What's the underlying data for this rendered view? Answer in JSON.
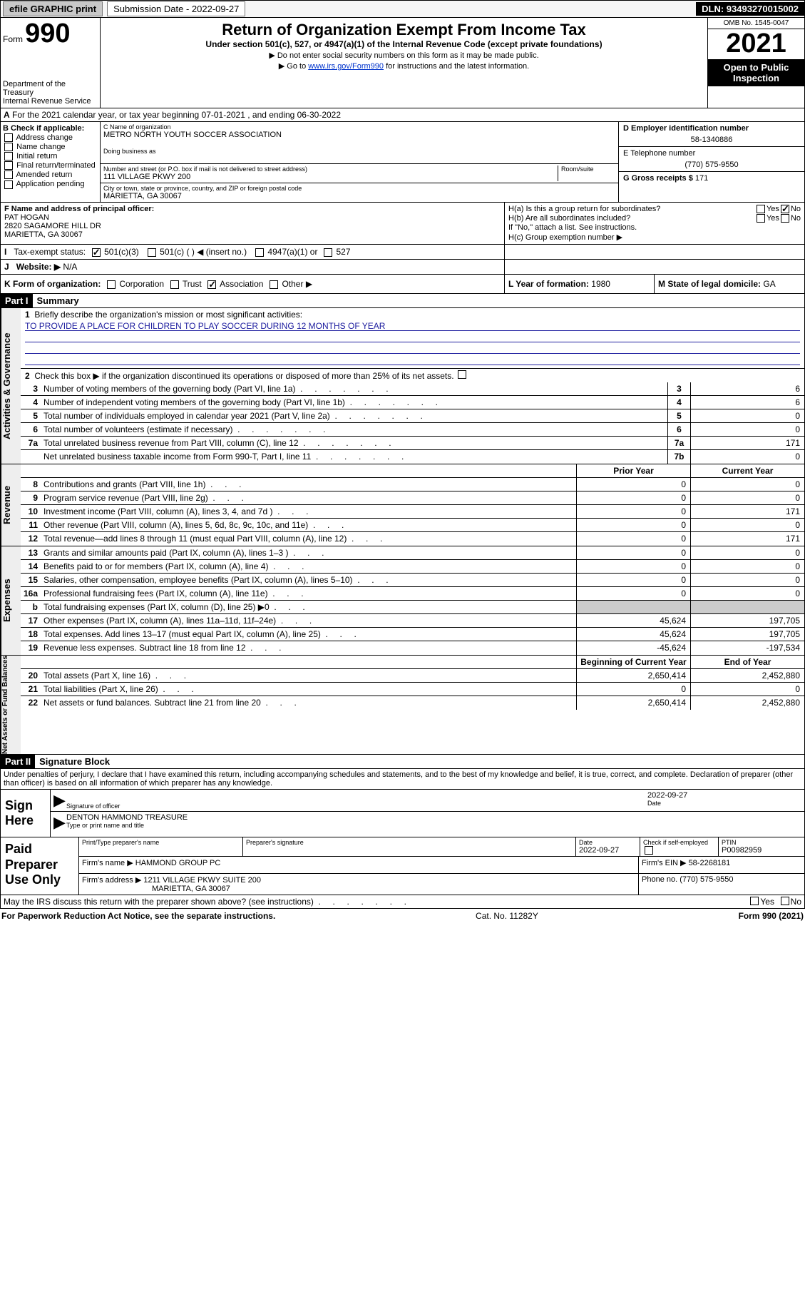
{
  "topbar": {
    "efile": "efile GRAPHIC print",
    "submission_label": "Submission Date - 2022-09-27",
    "dln": "DLN: 93493270015002"
  },
  "header": {
    "form_word": "Form",
    "form_num": "990",
    "dept": "Department of the Treasury",
    "irs": "Internal Revenue Service",
    "title": "Return of Organization Exempt From Income Tax",
    "subtitle": "Under section 501(c), 527, or 4947(a)(1) of the Internal Revenue Code (except private foundations)",
    "note1": "▶ Do not enter social security numbers on this form as it may be made public.",
    "note2_pre": "▶ Go to ",
    "note2_link": "www.irs.gov/Form990",
    "note2_post": " for instructions and the latest information.",
    "omb": "OMB No. 1545-0047",
    "year": "2021",
    "open": "Open to Public Inspection"
  },
  "periodA": "For the 2021 calendar year, or tax year beginning 07-01-2021   , and ending 06-30-2022",
  "B": {
    "label": "B Check if applicable:",
    "opts": [
      "Address change",
      "Name change",
      "Initial return",
      "Final return/terminated",
      "Amended return",
      "Application pending"
    ]
  },
  "C": {
    "name_label": "C Name of organization",
    "name": "METRO NORTH YOUTH SOCCER ASSOCIATION",
    "dba_label": "Doing business as",
    "street_label": "Number and street (or P.O. box if mail is not delivered to street address)",
    "room_label": "Room/suite",
    "street": "111 VILLAGE PKWY 200",
    "city_label": "City or town, state or province, country, and ZIP or foreign postal code",
    "city": "MARIETTA, GA  30067"
  },
  "D": {
    "label": "D Employer identification number",
    "value": "58-1340886"
  },
  "E": {
    "label": "E Telephone number",
    "value": "(770) 575-9550"
  },
  "G": {
    "label": "G Gross receipts $",
    "value": "171"
  },
  "F": {
    "label": "F  Name and address of principal officer:",
    "name": "PAT HOGAN",
    "addr1": "2820 SAGAMORE HILL DR",
    "addr2": "MARIETTA, GA  30067"
  },
  "H": {
    "a": "H(a)  Is this a group return for subordinates?",
    "b": "H(b)  Are all subordinates included?",
    "b_note": "If \"No,\" attach a list. See instructions.",
    "c": "H(c)  Group exemption number ▶",
    "yes": "Yes",
    "no": "No"
  },
  "I": {
    "label": "Tax-exempt status:",
    "o1": "501(c)(3)",
    "o2": "501(c) (  ) ◀ (insert no.)",
    "o3": "4947(a)(1) or",
    "o4": "527"
  },
  "J": {
    "label": "Website: ▶",
    "value": "N/A"
  },
  "K": {
    "label": "K Form of organization:",
    "o1": "Corporation",
    "o2": "Trust",
    "o3": "Association",
    "o4": "Other ▶"
  },
  "L": {
    "label": "L Year of formation:",
    "value": "1980"
  },
  "M": {
    "label": "M State of legal domicile:",
    "value": "GA"
  },
  "partI": {
    "tag": "Part I",
    "title": "Summary"
  },
  "summary": {
    "q1": "Briefly describe the organization's mission or most significant activities:",
    "mission": "TO PROVIDE A PLACE FOR CHILDREN TO PLAY SOCCER DURING 12 MONTHS OF YEAR",
    "q2": "Check this box ▶         if the organization discontinued its operations or disposed of more than 25% of its net assets.",
    "rows_ag": [
      {
        "n": "3",
        "d": "Number of voting members of the governing body (Part VI, line 1a)",
        "box": "3",
        "v": "6"
      },
      {
        "n": "4",
        "d": "Number of independent voting members of the governing body (Part VI, line 1b)",
        "box": "4",
        "v": "6"
      },
      {
        "n": "5",
        "d": "Total number of individuals employed in calendar year 2021 (Part V, line 2a)",
        "box": "5",
        "v": "0"
      },
      {
        "n": "6",
        "d": "Total number of volunteers (estimate if necessary)",
        "box": "6",
        "v": "0"
      },
      {
        "n": "7a",
        "d": "Total unrelated business revenue from Part VIII, column (C), line 12",
        "box": "7a",
        "v": "171"
      },
      {
        "n": "",
        "d": "Net unrelated business taxable income from Form 990-T, Part I, line 11",
        "box": "7b",
        "v": "0"
      }
    ],
    "hdr_prior": "Prior Year",
    "hdr_current": "Current Year",
    "rows_rev": [
      {
        "n": "8",
        "d": "Contributions and grants (Part VIII, line 1h)",
        "p": "0",
        "c": "0"
      },
      {
        "n": "9",
        "d": "Program service revenue (Part VIII, line 2g)",
        "p": "0",
        "c": "0"
      },
      {
        "n": "10",
        "d": "Investment income (Part VIII, column (A), lines 3, 4, and 7d )",
        "p": "0",
        "c": "171"
      },
      {
        "n": "11",
        "d": "Other revenue (Part VIII, column (A), lines 5, 6d, 8c, 9c, 10c, and 11e)",
        "p": "0",
        "c": "0"
      },
      {
        "n": "12",
        "d": "Total revenue—add lines 8 through 11 (must equal Part VIII, column (A), line 12)",
        "p": "0",
        "c": "171"
      }
    ],
    "rows_exp": [
      {
        "n": "13",
        "d": "Grants and similar amounts paid (Part IX, column (A), lines 1–3 )",
        "p": "0",
        "c": "0"
      },
      {
        "n": "14",
        "d": "Benefits paid to or for members (Part IX, column (A), line 4)",
        "p": "0",
        "c": "0"
      },
      {
        "n": "15",
        "d": "Salaries, other compensation, employee benefits (Part IX, column (A), lines 5–10)",
        "p": "0",
        "c": "0"
      },
      {
        "n": "16a",
        "d": "Professional fundraising fees (Part IX, column (A), line 11e)",
        "p": "0",
        "c": "0"
      },
      {
        "n": "b",
        "d": "Total fundraising expenses (Part IX, column (D), line 25) ▶0",
        "p": "",
        "c": "",
        "shade": true
      },
      {
        "n": "17",
        "d": "Other expenses (Part IX, column (A), lines 11a–11d, 11f–24e)",
        "p": "45,624",
        "c": "197,705"
      },
      {
        "n": "18",
        "d": "Total expenses. Add lines 13–17 (must equal Part IX, column (A), line 25)",
        "p": "45,624",
        "c": "197,705"
      },
      {
        "n": "19",
        "d": "Revenue less expenses. Subtract line 18 from line 12",
        "p": "-45,624",
        "c": "-197,534"
      }
    ],
    "hdr_beg": "Beginning of Current Year",
    "hdr_end": "End of Year",
    "rows_na": [
      {
        "n": "20",
        "d": "Total assets (Part X, line 16)",
        "p": "2,650,414",
        "c": "2,452,880"
      },
      {
        "n": "21",
        "d": "Total liabilities (Part X, line 26)",
        "p": "0",
        "c": "0"
      },
      {
        "n": "22",
        "d": "Net assets or fund balances. Subtract line 21 from line 20",
        "p": "2,650,414",
        "c": "2,452,880"
      }
    ],
    "vtabs": {
      "ag": "Activities & Governance",
      "rev": "Revenue",
      "exp": "Expenses",
      "na": "Net Assets or Fund Balances"
    }
  },
  "partII": {
    "tag": "Part II",
    "title": "Signature Block"
  },
  "sig": {
    "penalties": "Under penalties of perjury, I declare that I have examined this return, including accompanying schedules and statements, and to the best of my knowledge and belief, it is true, correct, and complete. Declaration of preparer (other than officer) is based on all information of which preparer has any knowledge.",
    "sign_here": "Sign Here",
    "sig_officer": "Signature of officer",
    "date": "2022-09-27",
    "date_label": "Date",
    "officer": "DENTON HAMMOND  TREASURE",
    "type_name": "Type or print name and title"
  },
  "paid": {
    "label": "Paid Preparer Use Only",
    "h1": "Print/Type preparer's name",
    "h2": "Preparer's signature",
    "h3": "Date",
    "h3v": "2022-09-27",
    "h4": "Check          if self-employed",
    "h5": "PTIN",
    "h5v": "P00982959",
    "firm_label": "Firm's name   ▶",
    "firm": "HAMMOND GROUP PC",
    "ein_label": "Firm's EIN ▶",
    "ein": "58-2268181",
    "addr_label": "Firm's address ▶",
    "addr1": "1211 VILLAGE PKWY SUITE 200",
    "addr2": "MARIETTA, GA  30067",
    "phone_label": "Phone no.",
    "phone": "(770) 575-9550"
  },
  "may": "May the IRS discuss this return with the preparer shown above? (see instructions)",
  "footer": {
    "l": "For Paperwork Reduction Act Notice, see the separate instructions.",
    "c": "Cat. No. 11282Y",
    "r": "Form 990 (2021)"
  }
}
